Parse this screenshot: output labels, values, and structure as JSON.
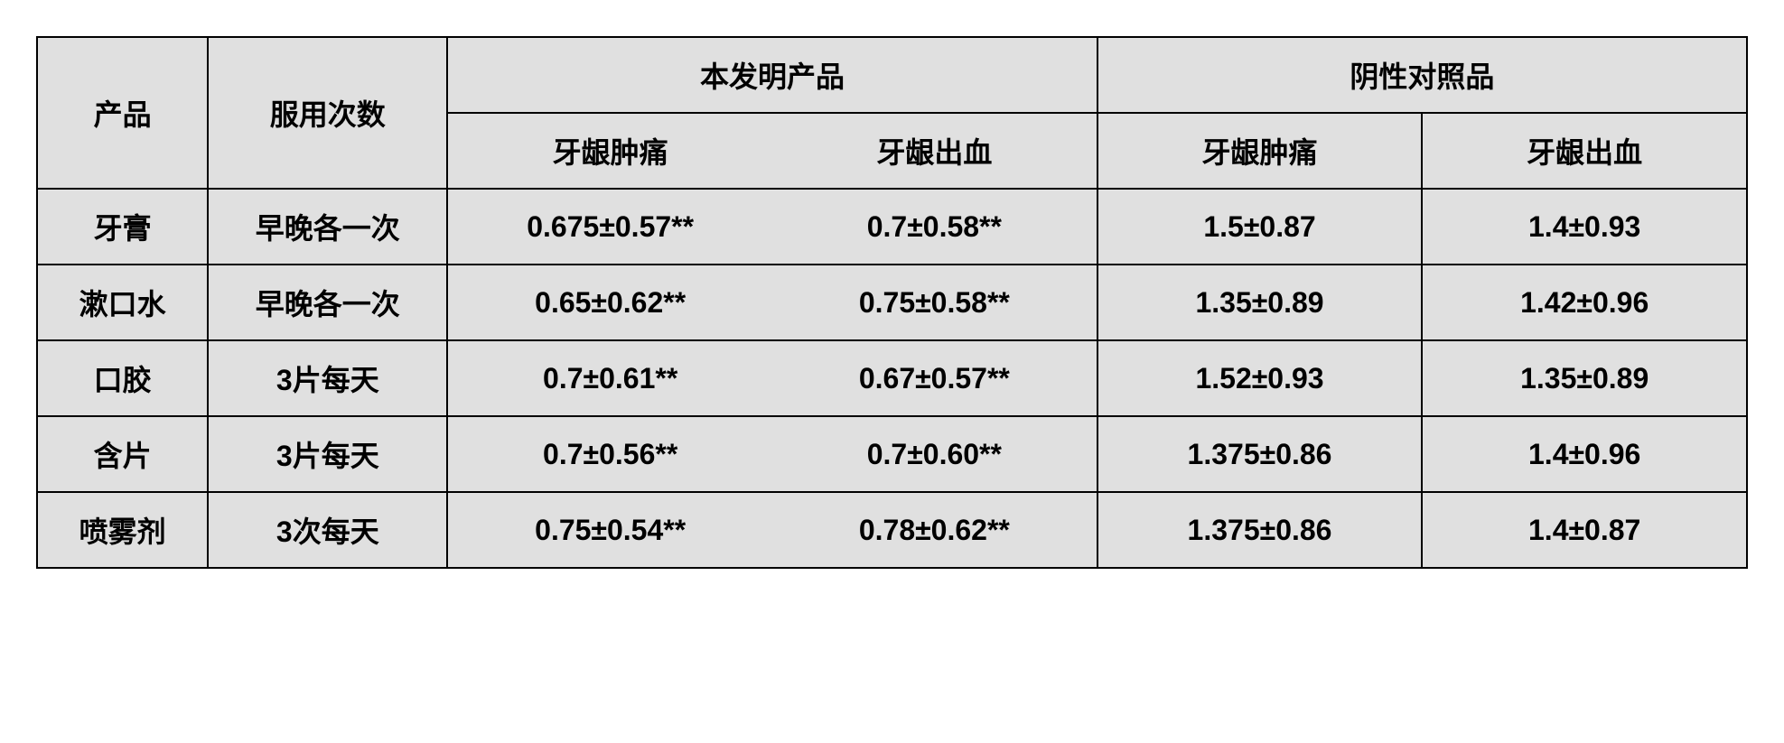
{
  "table": {
    "header": {
      "col_product": "产品",
      "col_dosage": "服用次数",
      "group_invention": "本发明产品",
      "group_control": "阴性对照品",
      "sub_swelling": "牙龈肿痛",
      "sub_bleeding": "牙龈出血"
    },
    "rows": [
      {
        "product": "牙膏",
        "dosage": "早晚各一次",
        "inv_swelling": "0.675±0.57**",
        "inv_bleeding": "0.7±0.58**",
        "ctrl_swelling": "1.5±0.87",
        "ctrl_bleeding": "1.4±0.93"
      },
      {
        "product": "漱口水",
        "dosage": "早晚各一次",
        "inv_swelling": "0.65±0.62**",
        "inv_bleeding": "0.75±0.58**",
        "ctrl_swelling": "1.35±0.89",
        "ctrl_bleeding": "1.42±0.96"
      },
      {
        "product": "口胶",
        "dosage": "3片每天",
        "inv_swelling": "0.7±0.61**",
        "inv_bleeding": "0.67±0.57**",
        "ctrl_swelling": "1.52±0.93",
        "ctrl_bleeding": "1.35±0.89"
      },
      {
        "product": "含片",
        "dosage": "3片每天",
        "inv_swelling": "0.7±0.56**",
        "inv_bleeding": "0.7±0.60**",
        "ctrl_swelling": "1.375±0.86",
        "ctrl_bleeding": "1.4±0.96"
      },
      {
        "product": "喷雾剂",
        "dosage": "3次每天",
        "inv_swelling": "0.75±0.54**",
        "inv_bleeding": "0.78±0.62**",
        "ctrl_swelling": "1.375±0.86",
        "ctrl_bleeding": "1.4±0.87"
      }
    ],
    "style": {
      "background_color": "#e0e0e0",
      "border_color": "#000000",
      "text_color": "#000000",
      "font_size": 32,
      "font_weight": "bold",
      "border_width": 2
    }
  }
}
